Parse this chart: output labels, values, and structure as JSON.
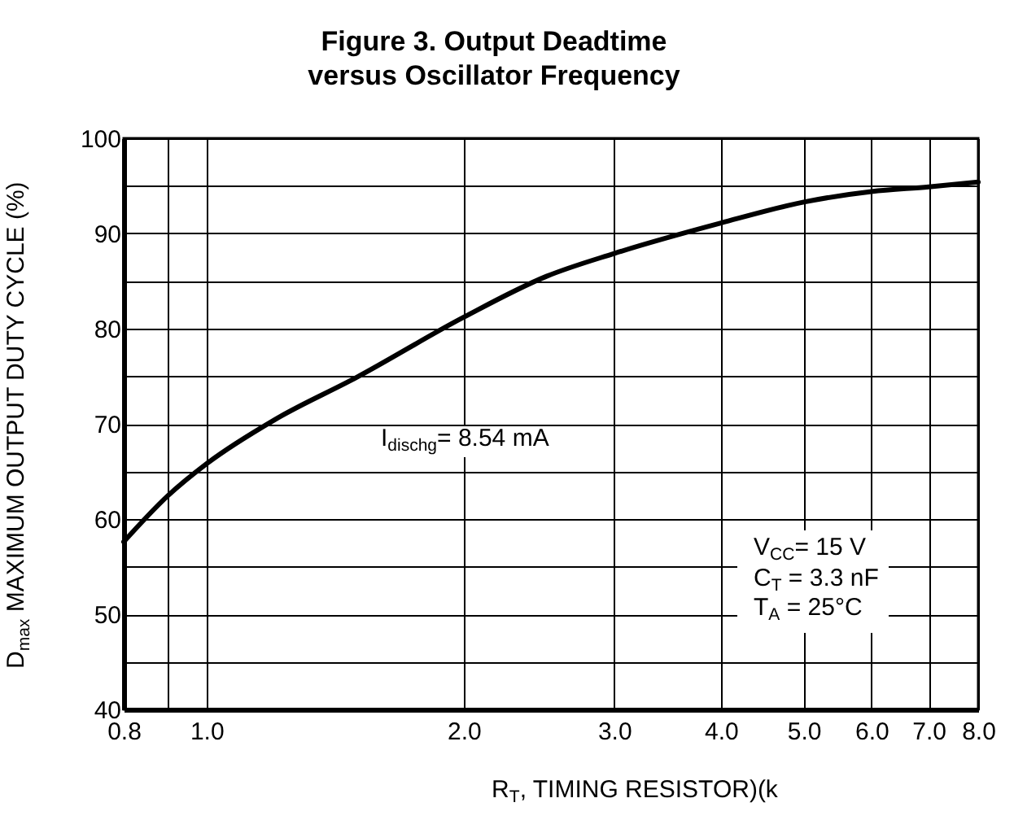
{
  "chart_data": {
    "type": "line",
    "title": "Figure 3. Output Deadtime\nversus Oscillator Frequency",
    "xlabel": "R$_{T}$, TIMING RESISTOR)(k",
    "ylabel": "D$_{max}$ MAXIMUM OUTPUT DUTY CYCLE (%)",
    "x": [
      0.8,
      0.9,
      1.0,
      1.2,
      1.5,
      2.0,
      2.5,
      3.0,
      4.0,
      5.0,
      6.0,
      7.0,
      8.0
    ],
    "series": [
      {
        "color": "#000000",
        "values": [
          57.6,
          62.4,
          65.8,
          70.4,
          74.9,
          81.2,
          85.5,
          87.9,
          91.1,
          93.3,
          94.4,
          94.9,
          95.4
        ]
      }
    ],
    "log": "x",
    "xlim": [
      0.8,
      8
    ],
    "xticks": [
      0.8,
      {
        "value": 0.9,
        "label": null
      },
      {
        "value": 1,
        "label": "1.0"
      },
      {
        "value": 2,
        "label": "2.0"
      },
      {
        "value": 3,
        "label": "3.0"
      },
      {
        "value": 4,
        "label": "4.0"
      },
      {
        "value": 5,
        "label": "5.0"
      },
      {
        "value": 6,
        "label": "6.0"
      },
      {
        "value": 7,
        "label": "7.0"
      },
      {
        "value": 8,
        "label": "8.0"
      }
    ],
    "ylim": [
      40,
      100
    ],
    "yticks": [
      40,
      {
        "value": 45,
        "label": null
      },
      50,
      {
        "value": 55,
        "label": null
      },
      60,
      {
        "value": 65,
        "label": null
      },
      70,
      {
        "value": 75,
        "label": null
      },
      80,
      {
        "value": 85,
        "label": null
      },
      90,
      {
        "value": 95,
        "label": null
      },
      100
    ],
    "grid": true,
    "marker": "none",
    "line_style": "solid",
    "annotations": [
      "I$_{dischg}$= 8.54 mA",
      "V$_{CC}$= 15 V\nC$_{T}$ = 3.3 nF\nT$_{A}$ = 25°C"
    ]
  }
}
